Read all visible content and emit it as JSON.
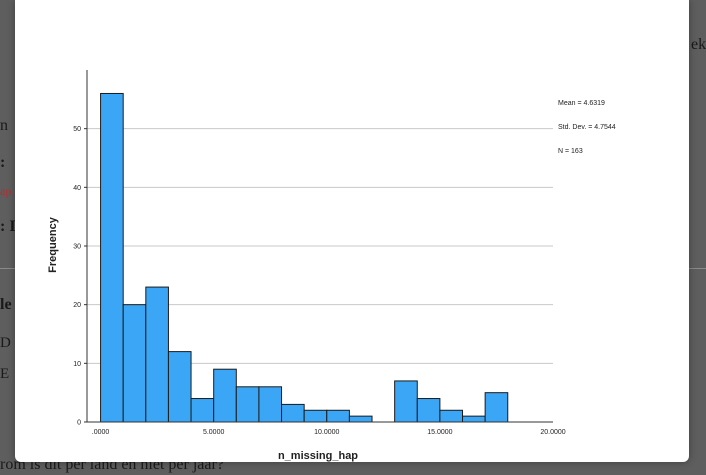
{
  "background": {
    "fragments": [
      "ek",
      "n",
      ":",
      "ap",
      ": I",
      "le",
      "D",
      "E",
      "rom is dit per land en niet per jaar?"
    ]
  },
  "chart_data": {
    "type": "bar",
    "title": "",
    "xlabel": "n_missing_hap",
    "ylabel": "Frequency",
    "x_ticks": [
      ".0000",
      "5.0000",
      "10.0000",
      "15.0000",
      "20.0000"
    ],
    "x_tick_values": [
      0,
      5,
      10,
      15,
      20
    ],
    "y_ticks": [
      "0",
      "10",
      "20",
      "30",
      "40",
      "50"
    ],
    "y_tick_values": [
      0,
      10,
      20,
      30,
      40,
      50
    ],
    "xlim": [
      -0.6,
      20
    ],
    "ylim": [
      0,
      60
    ],
    "bin_width": 1,
    "bins": [
      {
        "x": 0.5,
        "value": 56
      },
      {
        "x": 1.5,
        "value": 20
      },
      {
        "x": 2.5,
        "value": 23
      },
      {
        "x": 3.5,
        "value": 12
      },
      {
        "x": 4.5,
        "value": 4
      },
      {
        "x": 5.5,
        "value": 9
      },
      {
        "x": 6.5,
        "value": 6
      },
      {
        "x": 7.5,
        "value": 6
      },
      {
        "x": 8.5,
        "value": 3
      },
      {
        "x": 9.5,
        "value": 2
      },
      {
        "x": 10.5,
        "value": 2
      },
      {
        "x": 11.5,
        "value": 1
      },
      {
        "x": 13.5,
        "value": 7
      },
      {
        "x": 14.5,
        "value": 4
      },
      {
        "x": 15.5,
        "value": 2
      },
      {
        "x": 16.5,
        "value": 1
      },
      {
        "x": 17.5,
        "value": 5
      }
    ],
    "grid": true,
    "bar_color": "#3aa6f5",
    "stats": {
      "mean": "Mean = 4.6319",
      "std_dev": "Std. Dev. = 4.7544",
      "n": "N = 163"
    }
  }
}
